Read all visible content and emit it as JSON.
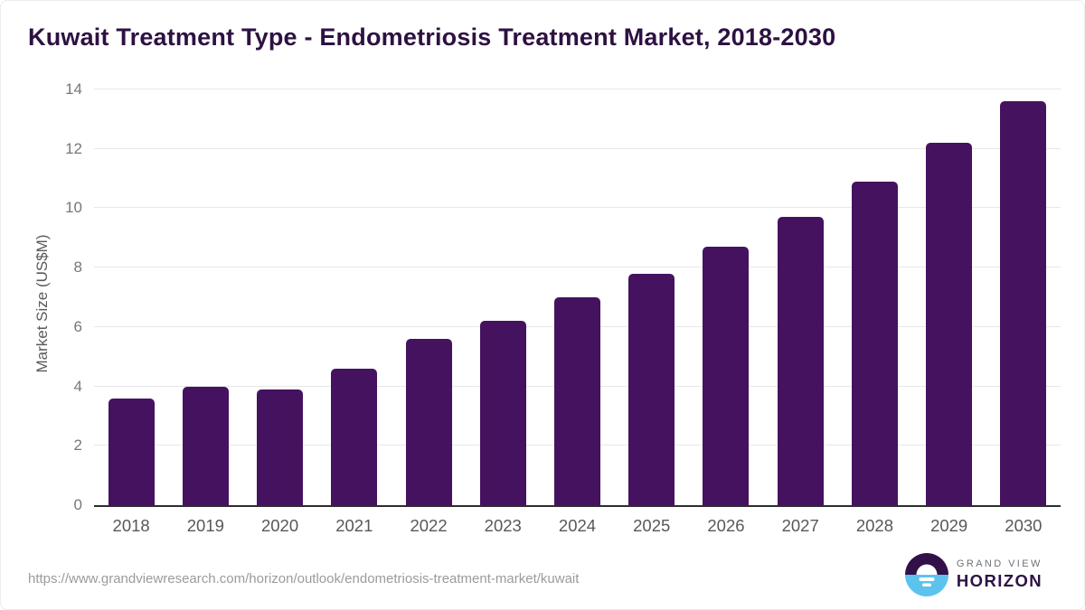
{
  "page": {
    "title": "Kuwait Treatment Type - Endometriosis Treatment Market, 2018-2030"
  },
  "footer": {
    "source_url": "https://www.grandviewresearch.com/horizon/outlook/endometriosis-treatment-market/kuwait",
    "logo": {
      "icon": "horizon-sunrise-icon",
      "line1": "GRAND VIEW",
      "line2": "HORIZON"
    }
  },
  "colors": {
    "bar": "#451260",
    "title_text": "#2e1143",
    "axis_line": "#2d2d2d",
    "gridline": "#e7e7e7",
    "y_tick_text": "#757779",
    "x_tick_text": "#57585a",
    "source_text": "#9b9b9b",
    "logo_purple": "#321149",
    "logo_blue": "#5cc3ef",
    "logo_gray_text": "#6e7276"
  },
  "chart_data": {
    "type": "bar",
    "title": "Kuwait Treatment Type - Endometriosis Treatment Market, 2018-2030",
    "categories": [
      "2018",
      "2019",
      "2020",
      "2021",
      "2022",
      "2023",
      "2024",
      "2025",
      "2026",
      "2027",
      "2028",
      "2029",
      "2030"
    ],
    "values": [
      3.6,
      4.0,
      3.9,
      4.6,
      5.6,
      6.2,
      7.0,
      7.8,
      8.7,
      9.7,
      10.9,
      12.2,
      13.6
    ],
    "xlabel": "",
    "ylabel": "Market Size (US$M)",
    "ylim": [
      0,
      14
    ],
    "yticks": [
      0,
      2,
      4,
      6,
      8,
      10,
      12,
      14
    ],
    "grid": true,
    "legend": false,
    "bar_color": "#451260"
  }
}
